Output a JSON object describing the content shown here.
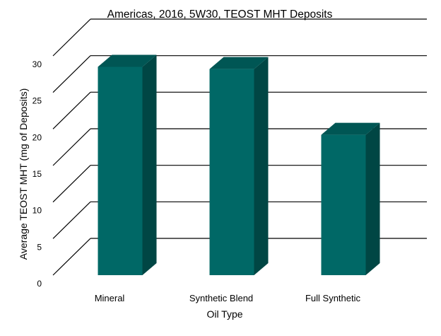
{
  "chart_data": {
    "type": "bar",
    "title": "Americas, 2016, 5W30, TEOST MHT Deposits",
    "xlabel": "Oil Type",
    "ylabel": "Average TEOST MHT (mg of Deposits)",
    "categories": [
      "Mineral",
      "Synthetic Blend",
      "Full Synthetic"
    ],
    "values": [
      28.5,
      28.2,
      19.2
    ],
    "ylim": [
      0,
      30
    ],
    "yticks": [
      "0",
      "5",
      "10",
      "15",
      "20",
      "25",
      "30"
    ],
    "grid": true,
    "legend": "none",
    "three_d": true,
    "colors": {
      "bar_front": "#006866",
      "bar_side": "#004644",
      "bar_top": "#005654",
      "grid": "#000000"
    }
  }
}
